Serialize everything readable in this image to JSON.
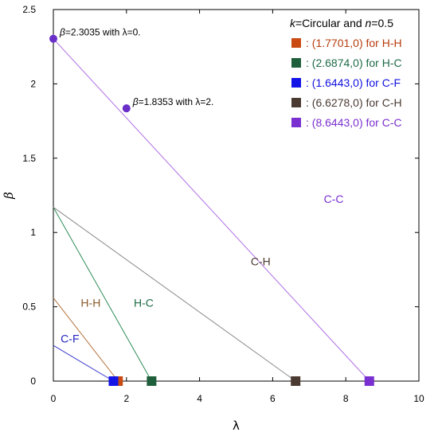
{
  "chart_data": {
    "type": "line",
    "xlabel": "λ",
    "ylabel": "β",
    "xlim": [
      0,
      10
    ],
    "ylim": [
      0,
      2.5
    ],
    "x_ticks": [
      "0",
      "2",
      "4",
      "6",
      "8",
      "10"
    ],
    "y_ticks": [
      "0",
      "0.5",
      "1",
      "1.5",
      "2",
      "2.5"
    ],
    "grid": false,
    "legend_placement": "top-right",
    "legend_title": {
      "k_symbol": "k",
      "k_text": "=Circular and ",
      "n_symbol": "n",
      "n_text": "=0.5"
    },
    "series": [
      {
        "name": "H-H",
        "label_text": "H-H",
        "color": "#b5713a",
        "points": [
          [
            0,
            0.56
          ],
          [
            1.7701,
            0
          ]
        ],
        "legend_text": ": (1.7701,0) for H-H",
        "legend_color": "#b83c0e",
        "marker_color": "#c94a12"
      },
      {
        "name": "H-C",
        "label_text": "H-C",
        "color": "#2e8b57",
        "points": [
          [
            0,
            1.17
          ],
          [
            2.6874,
            0
          ]
        ],
        "legend_text": ": (2.6874,0) for H-C",
        "legend_color": "#1e6b45",
        "marker_color": "#1f5f3b"
      },
      {
        "name": "C-F",
        "label_text": "C-F",
        "color": "#3a3ad0",
        "points": [
          [
            0,
            0.24
          ],
          [
            1.6443,
            0
          ]
        ],
        "legend_text": ": (1.6443,0) for C-F",
        "legend_color": "#1010e0",
        "marker_color": "#1414e6"
      },
      {
        "name": "C-H",
        "label_text": "C-H",
        "color": "#8a8a8a",
        "points": [
          [
            0,
            1.17
          ],
          [
            6.6278,
            0
          ]
        ],
        "legend_text": ": (6.6278,0) for C-H",
        "legend_color": "#4a3a32",
        "marker_color": "#4a3a32"
      },
      {
        "name": "C-C",
        "label_text": "C-C",
        "color": "#b070e6",
        "points": [
          [
            0,
            2.3035
          ],
          [
            8.6443,
            0
          ]
        ],
        "legend_text": ": (8.6443,0) for C-C",
        "legend_color": "#7a2fd0",
        "marker_color": "#7a2fd0"
      }
    ],
    "annotations": [
      {
        "x": 0,
        "y": 2.3035,
        "symbol": "β",
        "text": "=2.3035 with λ=0."
      },
      {
        "x": 2,
        "y": 1.8353,
        "symbol": "β",
        "text": "=1.8353 with λ=2."
      }
    ],
    "annotation_point_color": "#6a2fc8",
    "series_label_positions": {
      "H-H": {
        "x": 0.75,
        "y": 0.5,
        "color": "#8b5a2b"
      },
      "H-C": {
        "x": 2.2,
        "y": 0.5,
        "color": "#1e6b45"
      },
      "C-F": {
        "x": 0.2,
        "y": 0.26,
        "color": "#2020c0"
      },
      "C-H": {
        "x": 5.4,
        "y": 0.78,
        "color": "#4a3a32"
      },
      "C-C": {
        "x": 7.4,
        "y": 1.2,
        "color": "#7a2fd0"
      }
    }
  }
}
